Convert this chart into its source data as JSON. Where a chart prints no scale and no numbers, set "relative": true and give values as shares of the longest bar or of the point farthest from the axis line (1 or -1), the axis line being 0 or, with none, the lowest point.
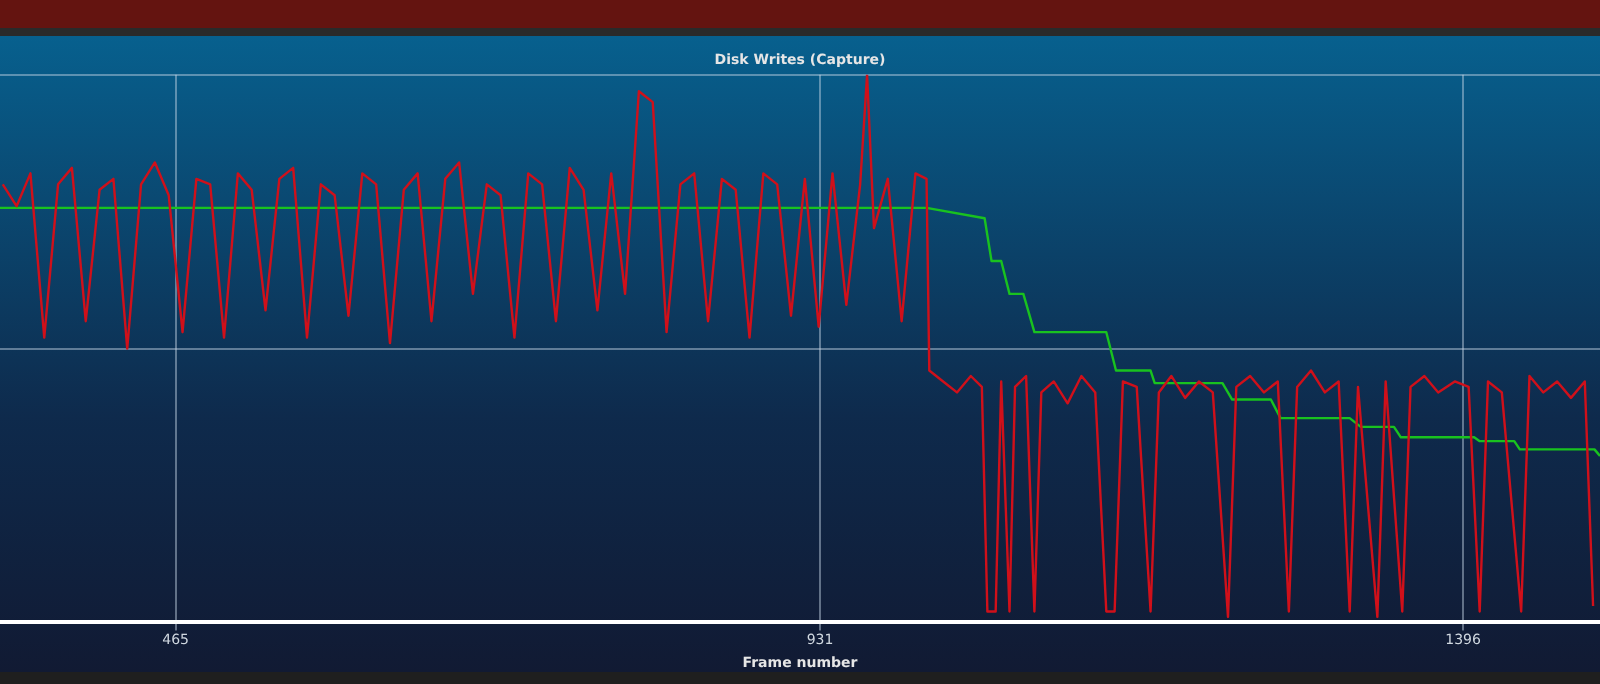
{
  "chart_data": {
    "type": "line",
    "title": "Disk Writes (Capture)",
    "xlabel": "Frame number",
    "relative": true,
    "grid": true,
    "marker": "none",
    "xlim": [
      338,
      1495
    ],
    "xticks": [
      465,
      931,
      1396
    ],
    "series": [
      {
        "color": "#d0101a",
        "x": [
          340,
          350,
          360,
          370,
          380,
          390,
          400,
          410,
          420,
          430,
          440,
          450,
          460,
          470,
          480,
          490,
          500,
          510,
          520,
          530,
          540,
          550,
          560,
          570,
          580,
          590,
          600,
          610,
          620,
          630,
          640,
          650,
          660,
          670,
          680,
          690,
          700,
          710,
          720,
          730,
          740,
          750,
          760,
          770,
          780,
          790,
          800,
          810,
          820,
          830,
          840,
          850,
          860,
          870,
          880,
          890,
          900,
          910,
          920,
          930,
          940,
          950,
          960,
          965,
          970,
          980,
          990,
          1000,
          1008,
          1010,
          1020,
          1030,
          1040,
          1048,
          1052,
          1058,
          1062,
          1068,
          1072,
          1080,
          1086,
          1091,
          1100,
          1110,
          1120,
          1130,
          1138,
          1144,
          1150,
          1160,
          1170,
          1176,
          1185,
          1195,
          1205,
          1215,
          1226,
          1232,
          1242,
          1252,
          1262,
          1270,
          1276,
          1286,
          1296,
          1306,
          1314,
          1320,
          1334,
          1340,
          1352,
          1358,
          1368,
          1378,
          1390,
          1400,
          1408,
          1414,
          1424,
          1438,
          1444,
          1454,
          1464,
          1474,
          1484,
          1490
        ],
        "values": [
          0.8,
          0.76,
          0.82,
          0.52,
          0.8,
          0.83,
          0.55,
          0.79,
          0.81,
          0.5,
          0.8,
          0.84,
          0.78,
          0.53,
          0.81,
          0.8,
          0.52,
          0.82,
          0.79,
          0.57,
          0.81,
          0.83,
          0.52,
          0.8,
          0.78,
          0.56,
          0.82,
          0.8,
          0.51,
          0.79,
          0.82,
          0.55,
          0.81,
          0.84,
          0.6,
          0.8,
          0.78,
          0.52,
          0.82,
          0.8,
          0.55,
          0.83,
          0.79,
          0.57,
          0.82,
          0.6,
          0.97,
          0.95,
          0.53,
          0.8,
          0.82,
          0.55,
          0.81,
          0.79,
          0.52,
          0.82,
          0.8,
          0.56,
          0.81,
          0.54,
          0.82,
          0.58,
          0.8,
          1.0,
          0.72,
          0.81,
          0.55,
          0.82,
          0.81,
          0.46,
          0.44,
          0.42,
          0.45,
          0.43,
          0.02,
          0.02,
          0.44,
          0.02,
          0.43,
          0.45,
          0.02,
          0.42,
          0.44,
          0.4,
          0.45,
          0.42,
          0.02,
          0.02,
          0.44,
          0.43,
          0.02,
          0.42,
          0.45,
          0.41,
          0.44,
          0.42,
          0.01,
          0.43,
          0.45,
          0.42,
          0.44,
          0.02,
          0.43,
          0.46,
          0.42,
          0.44,
          0.02,
          0.43,
          0.01,
          0.44,
          0.02,
          0.43,
          0.45,
          0.42,
          0.44,
          0.43,
          0.02,
          0.44,
          0.42,
          0.02,
          0.45,
          0.42,
          0.44,
          0.41,
          0.44,
          0.03
        ]
      },
      {
        "color": "#19c21f",
        "x": [
          338,
          1008,
          1050,
          1055,
          1062,
          1068,
          1078,
          1086,
          1138,
          1145,
          1170,
          1173,
          1222,
          1229,
          1257,
          1264,
          1314,
          1322,
          1346,
          1351,
          1404,
          1408,
          1433,
          1437,
          1491,
          1495
        ],
        "values": [
          0.757,
          0.757,
          0.738,
          0.66,
          0.66,
          0.6,
          0.6,
          0.53,
          0.53,
          0.46,
          0.46,
          0.437,
          0.437,
          0.407,
          0.407,
          0.373,
          0.373,
          0.357,
          0.357,
          0.338,
          0.338,
          0.331,
          0.331,
          0.316,
          0.316,
          0.304
        ]
      }
    ]
  }
}
